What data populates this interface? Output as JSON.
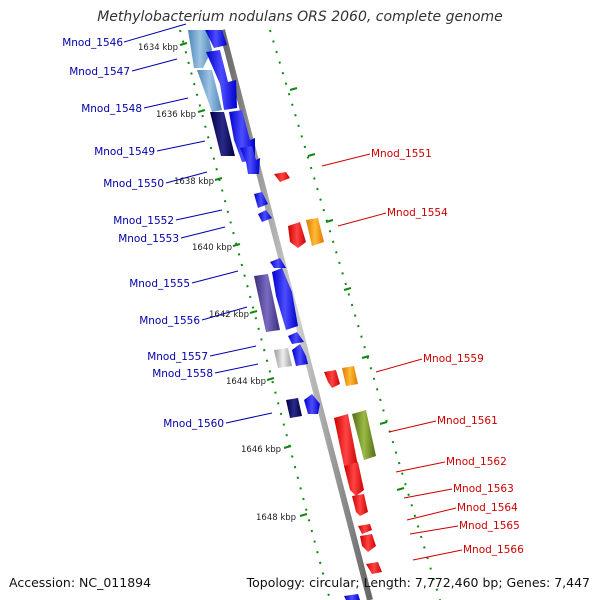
{
  "title": "Methylobacterium nodulans ORS 2060, complete genome",
  "accession": "Accession: NC_011894",
  "topology_info": "Topology: circular; Length: 7,772,460 bp; Genes: 7,447",
  "colors": {
    "plus_label": "#0000aa",
    "minus_label": "#cc0000",
    "backbone": "#888888",
    "tick_dots": "#118811"
  },
  "kbp_labels": [
    "1634 kbp",
    "1636 kbp",
    "1638 kbp",
    "1640 kbp",
    "1642 kbp",
    "1644 kbp",
    "1646 kbp",
    "1648 kbp"
  ],
  "genes_plus": [
    {
      "label": "Mnod_1546"
    },
    {
      "label": "Mnod_1547"
    },
    {
      "label": "Mnod_1548"
    },
    {
      "label": "Mnod_1549"
    },
    {
      "label": "Mnod_1550"
    },
    {
      "label": "Mnod_1552"
    },
    {
      "label": "Mnod_1553"
    },
    {
      "label": "Mnod_1555"
    },
    {
      "label": "Mnod_1556"
    },
    {
      "label": "Mnod_1557"
    },
    {
      "label": "Mnod_1558"
    },
    {
      "label": "Mnod_1560"
    }
  ],
  "genes_minus": [
    {
      "label": "Mnod_1551"
    },
    {
      "label": "Mnod_1554"
    },
    {
      "label": "Mnod_1559"
    },
    {
      "label": "Mnod_1561"
    },
    {
      "label": "Mnod_1562"
    },
    {
      "label": "Mnod_1563"
    },
    {
      "label": "Mnod_1564"
    },
    {
      "label": "Mnod_1565"
    },
    {
      "label": "Mnod_1566"
    }
  ]
}
